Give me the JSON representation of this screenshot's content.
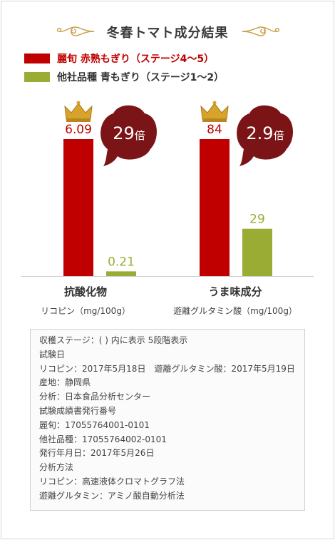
{
  "title": "冬春トマト成分結果",
  "legend": [
    {
      "label": "麗旬 赤熟もぎり",
      "sub": "（ステージ4〜5）",
      "color": "#c00000"
    },
    {
      "label": "他社品種 青もぎり",
      "sub": "（ステージ1〜2）",
      "color": "#9aac33"
    }
  ],
  "colors": {
    "red": "#c00000",
    "green": "#9aac33",
    "bubble": "#7a1416",
    "crown": "#d8a32a"
  },
  "chart_data": {
    "type": "bar",
    "categories": [
      {
        "name": "抗酸化物",
        "unit": "リコピン（mg/100g）",
        "values": [
          6.09,
          0.21
        ],
        "value_labels": [
          "6.09",
          "0.21"
        ],
        "ratio": "29倍"
      },
      {
        "name": "うま味成分",
        "unit": "遊離グルタミン酸（mg/100g）",
        "values": [
          84,
          29
        ],
        "value_labels": [
          "84",
          "29"
        ],
        "ratio": "2.9倍"
      }
    ],
    "series": [
      {
        "name": "麗旬 赤熟もぎり（ステージ4〜5）"
      },
      {
        "name": "他社品種 青もぎり（ステージ1〜2）"
      }
    ]
  },
  "notes": [
    "収穫ステージ：( ) 内に表示 5段階表示",
    "試験日",
    "リコピン：2017年5月18日　遊離グルタミン酸：2017年5月19日",
    "産地：静岡県",
    "分析：日本食品分析センター",
    "試験成績書発行番号",
    "麗旬：17055764001-0101",
    "他社品種：17055764002-0101",
    "発行年月日：2017年5月26日",
    "分析方法",
    "リコピン：高速液体クロマトグラフ法",
    "遊離グルタミン：アミノ酸自動分析法"
  ]
}
